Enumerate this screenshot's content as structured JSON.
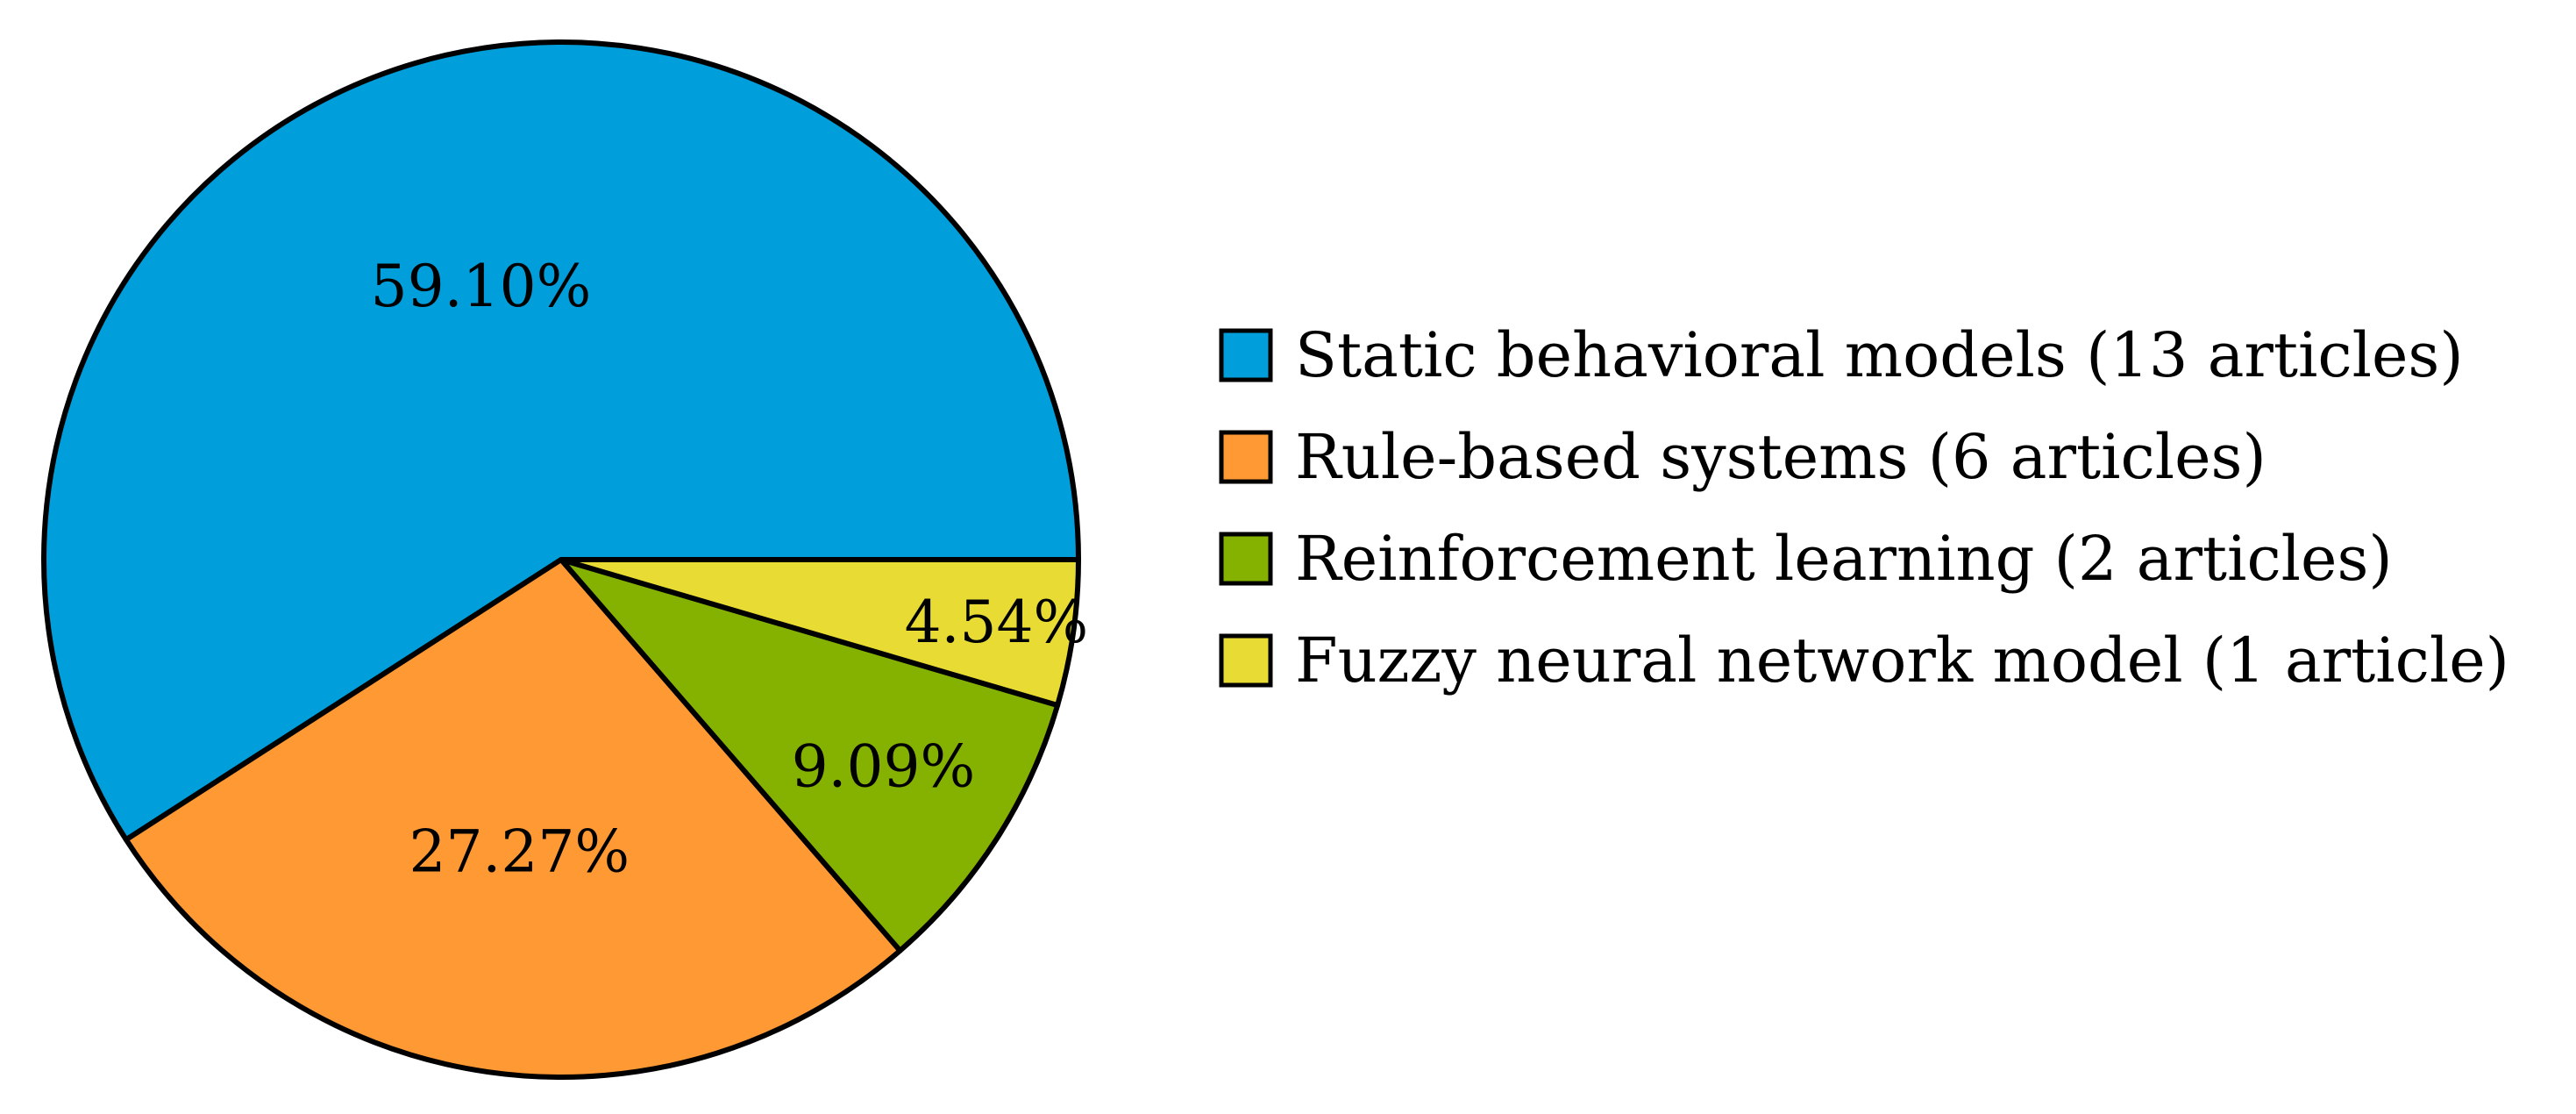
{
  "chart_data": {
    "type": "pie",
    "title": "",
    "start_angle_deg": 0,
    "direction": "counterclockwise",
    "legend_position": "right",
    "slices": [
      {
        "label": "Static behavioral models (13 articles)",
        "value": 59.1,
        "value_label": "59.10%",
        "color": "#009FDB"
      },
      {
        "label": "Rule-based systems (6 articles)",
        "value": 27.27,
        "value_label": "27.27%",
        "color": "#FF9933"
      },
      {
        "label": "Reinforcement learning (2 articles)",
        "value": 9.09,
        "value_label": "9.09%",
        "color": "#85B200"
      },
      {
        "label": "Fuzzy neural network model (1 article)",
        "value": 4.54,
        "value_label": "4.54%",
        "color": "#E8DB33"
      }
    ]
  }
}
